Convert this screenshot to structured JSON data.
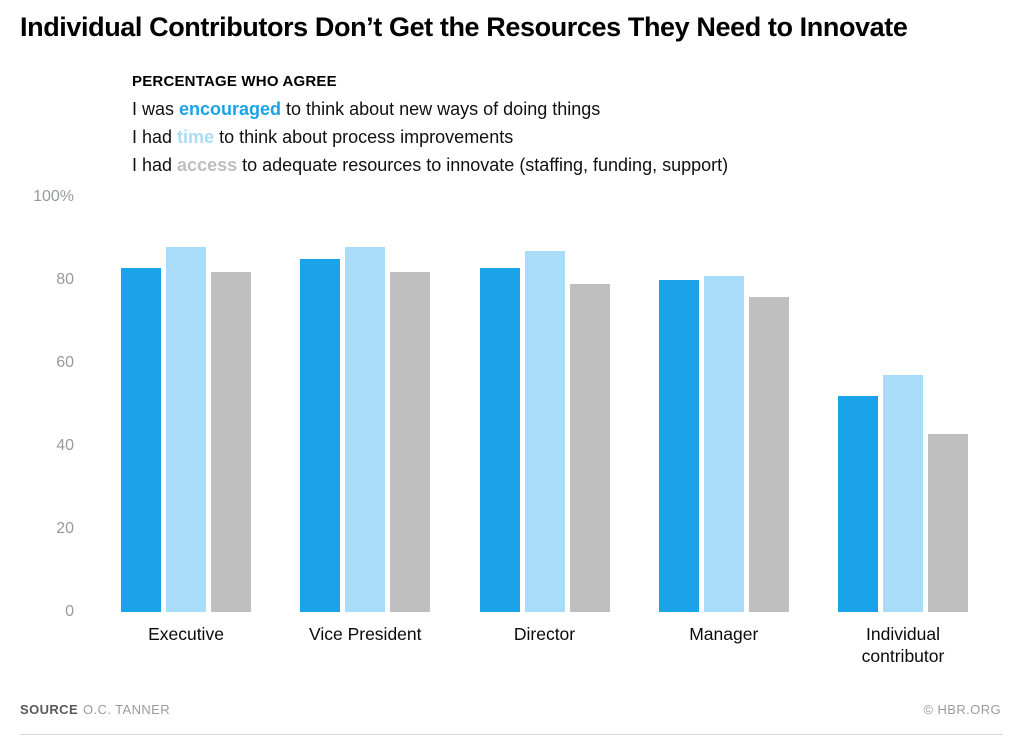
{
  "page": {
    "title": "Individual Contributors Don’t Get the Resources They Need to Innovate"
  },
  "legend": {
    "heading": "PERCENTAGE WHO AGREE",
    "lines": [
      {
        "pre": "I was ",
        "keyword": "encouraged",
        "post": " to think about new ways of doing things",
        "color_key": "encouraged"
      },
      {
        "pre": "I had ",
        "keyword": "time",
        "post": " to think about process improvements",
        "color_key": "time"
      },
      {
        "pre": "I had ",
        "keyword": "access",
        "post": " to adequate resources to innovate (staffing, funding, support)",
        "color_key": "access"
      }
    ]
  },
  "colors": {
    "encouraged": "#1aa3e8",
    "time": "#a9dcf8",
    "access": "#bfbfbf"
  },
  "chart_data": {
    "type": "bar",
    "title": "Individual Contributors Don’t Get the Resources They Need to Innovate",
    "subtitle": "PERCENTAGE WHO AGREE",
    "categories": [
      "Executive",
      "Vice President",
      "Director",
      "Manager",
      "Individual contributor"
    ],
    "series": [
      {
        "name": "encouraged",
        "label": "I was encouraged to think about new ways of doing things",
        "color": "#1aa3e8",
        "values": [
          83,
          85,
          83,
          80,
          52
        ]
      },
      {
        "name": "time",
        "label": "I had time to think about process improvements",
        "color": "#a9dcf8",
        "values": [
          88,
          88,
          87,
          81,
          57
        ]
      },
      {
        "name": "access",
        "label": "I had access to adequate resources to innovate (staffing, funding, support)",
        "color": "#bfbfbf",
        "values": [
          82,
          82,
          79,
          76,
          43
        ]
      }
    ],
    "xlabel": "",
    "ylabel": "",
    "ylim": [
      0,
      100
    ],
    "yticks": [
      {
        "value": 0,
        "label": "0"
      },
      {
        "value": 20,
        "label": "20"
      },
      {
        "value": 40,
        "label": "40"
      },
      {
        "value": 60,
        "label": "60"
      },
      {
        "value": 80,
        "label": "80"
      },
      {
        "value": 100,
        "label": "100%"
      }
    ],
    "grid": false,
    "legend_position": "top"
  },
  "footer": {
    "source_label": "SOURCE",
    "source_value": "O.C. TANNER",
    "copyright": "© HBR.ORG"
  }
}
